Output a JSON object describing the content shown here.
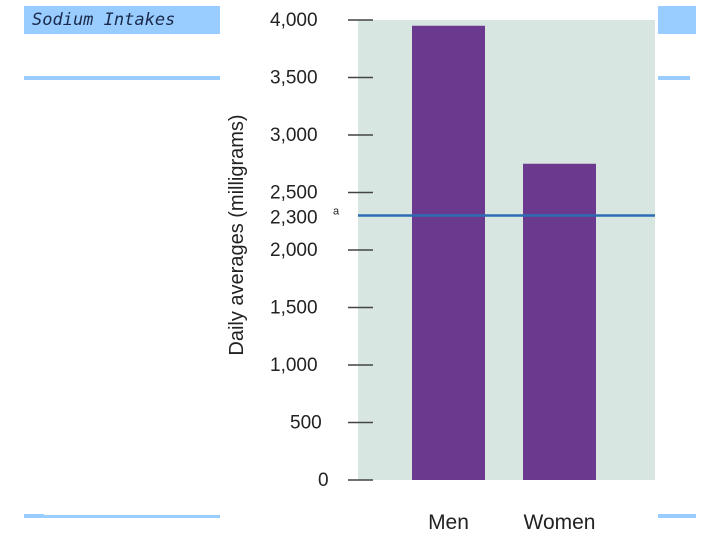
{
  "slide": {
    "title": "Sodium Intakes",
    "accent_color": "#99ccff"
  },
  "chart_data": {
    "type": "bar",
    "title": "",
    "xlabel": "",
    "ylabel": "Daily averages (milligrams)",
    "categories": [
      "Men",
      "Women"
    ],
    "values": [
      3950,
      2750
    ],
    "ylim": [
      0,
      4000
    ],
    "yticks": [
      {
        "value": 0,
        "label": "0"
      },
      {
        "value": 500,
        "label": "500"
      },
      {
        "value": 1000,
        "label": "1,000"
      },
      {
        "value": 1500,
        "label": "1,500"
      },
      {
        "value": 2000,
        "label": "2,000"
      },
      {
        "value": 2500,
        "label": "2,500"
      },
      {
        "value": 3000,
        "label": "3,000"
      },
      {
        "value": 3500,
        "label": "3,500"
      },
      {
        "value": 4000,
        "label": "4,000"
      }
    ],
    "reference_line": {
      "value": 2300,
      "label": "2,300",
      "superscript": "a",
      "color": "#2e6db4"
    },
    "bar_color": "#6b3a8e",
    "plot_background": "#d8e6e2",
    "grid": false,
    "legend": "none"
  }
}
